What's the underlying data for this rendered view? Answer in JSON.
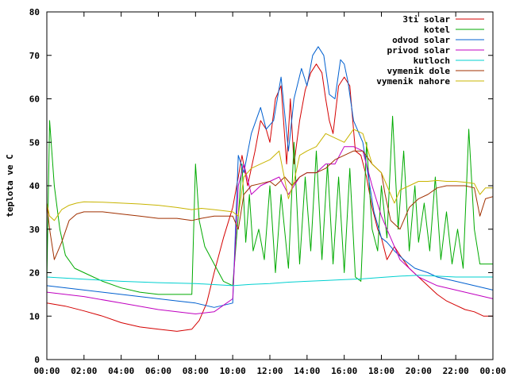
{
  "chart_data": {
    "type": "line",
    "ylabel": "teplota ve C",
    "xlabel": "",
    "x_ticks": [
      "00:00",
      "02:00",
      "04:00",
      "06:00",
      "08:00",
      "10:00",
      "12:00",
      "14:00",
      "16:00",
      "18:00",
      "20:00",
      "22:00",
      "00:00"
    ],
    "y_ticks": [
      "0",
      "10",
      "20",
      "30",
      "40",
      "50",
      "60",
      "70",
      "80"
    ],
    "xlim": [
      0,
      24
    ],
    "ylim": [
      0,
      80
    ],
    "grid": false,
    "legend_position": "top-right",
    "colors": {
      "3ti solar": "#d40000",
      "kotel": "#00aa00",
      "odvod solar": "#0060d0",
      "privod solar": "#c000c0",
      "kutloch": "#00d0d0",
      "vymenik dole": "#a03000",
      "vymenik nahore": "#c8b400"
    },
    "series": [
      {
        "name": "3ti solar",
        "x": [
          0,
          1,
          2,
          3,
          4,
          5,
          6,
          7,
          7.8,
          8.2,
          8.6,
          9,
          9.5,
          10,
          10.3,
          10.5,
          10.8,
          11.2,
          11.5,
          11.8,
          12,
          12.3,
          12.6,
          12.9,
          13.1,
          13.3,
          13.6,
          13.9,
          14.2,
          14.5,
          14.8,
          15,
          15.2,
          15.4,
          15.7,
          16,
          16.3,
          16.6,
          16.9,
          17.2,
          17.5,
          17.8,
          18,
          18.3,
          18.7,
          19,
          19.5,
          20,
          20.5,
          21,
          21.5,
          22,
          22.5,
          23,
          23.5,
          24
        ],
        "values": [
          13,
          12.3,
          11.2,
          10,
          8.5,
          7.5,
          7,
          6.5,
          7,
          9,
          13,
          20,
          28,
          35,
          42,
          47,
          40,
          48,
          55,
          53,
          50,
          60,
          63,
          45,
          60,
          45,
          55,
          62,
          66,
          68,
          66,
          60,
          55,
          52,
          63,
          65,
          63,
          48,
          47,
          42,
          35,
          30,
          28,
          23,
          26,
          24,
          21,
          19,
          17,
          15,
          13.5,
          12.5,
          11.5,
          11,
          10,
          10
        ]
      },
      {
        "name": "kotel",
        "x": [
          0,
          0.15,
          0.4,
          0.7,
          1,
          1.5,
          2,
          3,
          4,
          5,
          6,
          7,
          7.8,
          8,
          8.2,
          8.5,
          9,
          9.5,
          10,
          10.3,
          10.5,
          10.7,
          10.9,
          11.1,
          11.4,
          11.7,
          12,
          12.3,
          12.6,
          13,
          13.3,
          13.6,
          13.9,
          14.2,
          14.5,
          14.8,
          15.1,
          15.4,
          15.7,
          16,
          16.3,
          16.6,
          16.9,
          17.2,
          17.5,
          17.8,
          18,
          18.3,
          18.6,
          18.9,
          19.2,
          19.5,
          19.8,
          20,
          20.3,
          20.6,
          20.9,
          21.2,
          21.5,
          21.8,
          22.1,
          22.4,
          22.7,
          23,
          23.3,
          23.6,
          24
        ],
        "values": [
          18,
          55,
          40,
          30,
          24,
          21,
          20,
          18,
          16.5,
          15.5,
          15,
          15,
          15,
          45,
          32,
          26,
          22,
          18,
          17,
          33,
          45,
          27,
          38,
          25,
          30,
          23,
          40,
          20,
          38,
          21,
          50,
          22,
          42,
          25,
          48,
          23,
          45,
          22,
          42,
          20,
          44,
          19,
          18,
          50,
          30,
          25,
          40,
          28,
          56,
          30,
          48,
          25,
          40,
          27,
          36,
          25,
          42,
          23,
          34,
          22,
          30,
          21,
          53,
          30,
          22,
          22,
          22
        ]
      },
      {
        "name": "odvod solar",
        "x": [
          0,
          2,
          4,
          6,
          7,
          8,
          9,
          10,
          10.3,
          10.6,
          11,
          11.5,
          11.8,
          12.2,
          12.6,
          13,
          13.3,
          13.7,
          14,
          14.3,
          14.6,
          14.9,
          15.2,
          15.5,
          15.8,
          16,
          16.2,
          16.5,
          16.8,
          17,
          17.3,
          17.6,
          18,
          18.3,
          18.7,
          19.2,
          19.8,
          20.5,
          21,
          22,
          23,
          24
        ],
        "values": [
          17,
          16,
          15,
          14,
          13.5,
          13,
          12,
          13,
          47,
          43,
          52,
          58,
          53,
          55,
          65,
          48,
          60,
          67,
          63,
          70,
          72,
          70,
          61,
          60,
          69,
          68,
          64,
          55,
          52,
          50,
          42,
          34,
          28,
          27,
          25,
          23,
          21,
          20,
          19,
          18,
          17,
          16
        ]
      },
      {
        "name": "privod solar",
        "x": [
          0,
          2,
          4,
          6,
          7,
          8,
          9,
          10,
          10.3,
          10.6,
          11,
          11.5,
          12,
          12.5,
          13,
          13.3,
          13.6,
          14,
          14.5,
          15,
          15.5,
          16,
          16.5,
          17,
          17.5,
          18,
          18.5,
          19,
          20,
          21,
          22,
          23,
          24
        ],
        "values": [
          15.5,
          14.5,
          13,
          11.5,
          11,
          10.5,
          11,
          14,
          40,
          45,
          38,
          40,
          41,
          42,
          38,
          40,
          42,
          43,
          43,
          45,
          45,
          49,
          49,
          48,
          40,
          33,
          28,
          23,
          19,
          17,
          16,
          15,
          14
        ]
      },
      {
        "name": "kutloch",
        "x": [
          0,
          2,
          4,
          6,
          8,
          10,
          11,
          12,
          13,
          14,
          15,
          16,
          17,
          18,
          19,
          20,
          21,
          22,
          23,
          24
        ],
        "values": [
          19,
          18.5,
          18,
          17.7,
          17.5,
          17,
          17.3,
          17.5,
          17.8,
          18,
          18.2,
          18.4,
          18.6,
          18.9,
          19.2,
          19.4,
          19.2,
          19,
          19,
          19
        ]
      },
      {
        "name": "vymenik dole",
        "x": [
          0,
          0.15,
          0.4,
          0.8,
          1.2,
          1.6,
          2,
          3,
          4,
          5,
          6,
          7,
          7.8,
          8.3,
          9,
          10,
          10.3,
          10.6,
          11,
          11.5,
          12,
          12.3,
          12.8,
          13.2,
          13.6,
          14,
          14.5,
          15,
          15.5,
          16,
          16.5,
          17,
          17.5,
          18,
          18.2,
          18.5,
          19,
          19.5,
          20,
          20.5,
          21,
          21.5,
          22,
          22.5,
          23,
          23.3,
          23.6,
          24
        ],
        "values": [
          36,
          30,
          23,
          27,
          32,
          33.5,
          34,
          34,
          33.5,
          33,
          32.5,
          32.5,
          32,
          32.5,
          33,
          33,
          30,
          38,
          40,
          40.5,
          41,
          40,
          42,
          40,
          42,
          43,
          43,
          44,
          46,
          47,
          48,
          48,
          45,
          43,
          38,
          32,
          30,
          35,
          37,
          38,
          39.5,
          40,
          40,
          40,
          39.5,
          33,
          37,
          37.5
        ]
      },
      {
        "name": "vymenik nahore",
        "x": [
          0,
          0.15,
          0.4,
          0.8,
          1.2,
          1.6,
          2,
          3,
          4,
          5,
          6,
          7,
          7.8,
          8.3,
          9,
          10,
          10.3,
          10.6,
          11,
          11.5,
          12,
          12.5,
          13,
          13.3,
          13.6,
          14,
          14.5,
          15,
          15.5,
          16,
          16.5,
          17,
          17.5,
          18,
          18.3,
          18.7,
          19,
          19.5,
          20,
          20.5,
          21,
          21.5,
          22,
          22.5,
          23,
          23.3,
          23.6,
          24
        ],
        "values": [
          36,
          33,
          32,
          34.5,
          35.5,
          36,
          36.3,
          36.2,
          36,
          35.8,
          35.5,
          35,
          34.5,
          34.8,
          34.5,
          34,
          33,
          42,
          44,
          45,
          46,
          48,
          37,
          41,
          47,
          48,
          49,
          52,
          51,
          50,
          53,
          52,
          45,
          43,
          40,
          36,
          39,
          40,
          41,
          41,
          41.2,
          41,
          41,
          40.8,
          40.5,
          38,
          39.5,
          39.5
        ]
      }
    ]
  }
}
